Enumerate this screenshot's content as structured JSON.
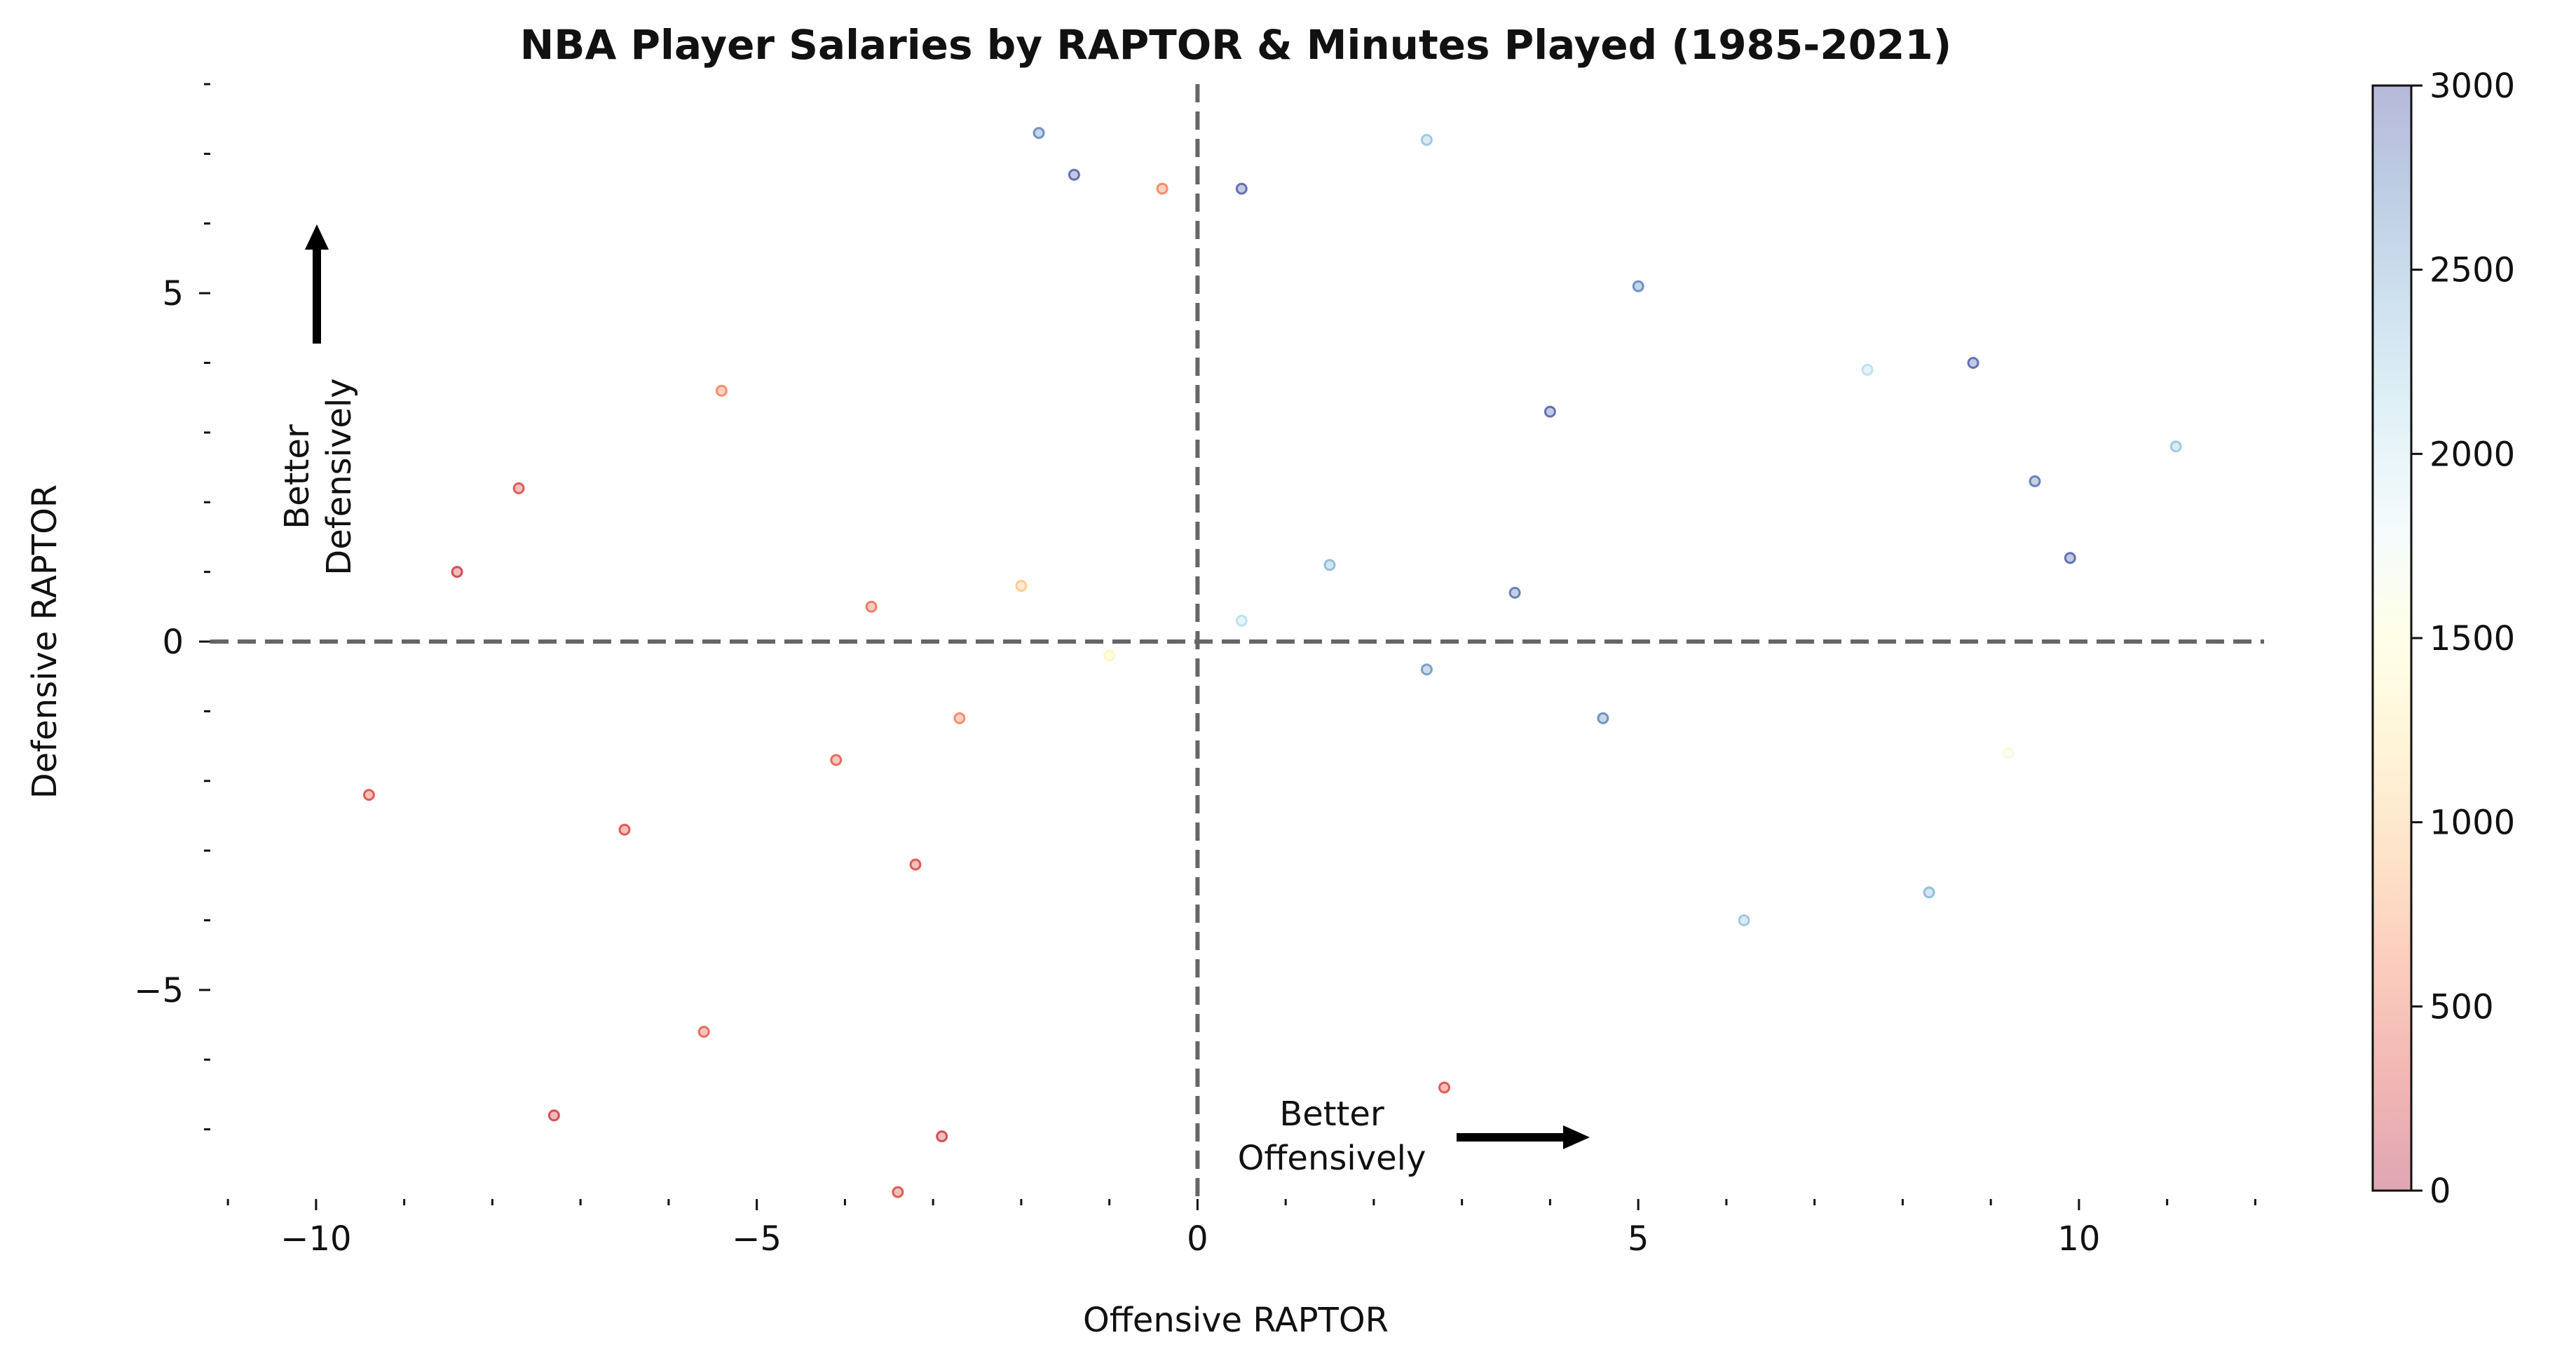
{
  "chart_data": {
    "type": "scatter",
    "title": "NBA Player Salaries by RAPTOR & Minutes Played (1985-2021)",
    "xlabel": "Offensive RAPTOR",
    "ylabel": "Defensive RAPTOR",
    "xlim": [
      -11.2,
      12.1
    ],
    "ylim": [
      -8.0,
      8.0
    ],
    "xticks": [
      -10,
      -5,
      0,
      5,
      10
    ],
    "yticks": [
      -5,
      0,
      5
    ],
    "xtick_labels": [
      "−10",
      "−5",
      "0",
      "5",
      "10"
    ],
    "ytick_labels": [
      "−5",
      "0",
      "5"
    ],
    "reference_lines": {
      "x": 0,
      "y": 0,
      "style": "dashed"
    },
    "grid": false,
    "annotations": {
      "defense": [
        "Better",
        "Defensively"
      ],
      "offense": [
        "Better",
        "Offensively"
      ]
    },
    "colorbar": {
      "label": "",
      "range": [
        0,
        3000
      ],
      "ticks": [
        0,
        500,
        1000,
        1500,
        2000,
        2500,
        3000
      ],
      "tick_labels": [
        "0",
        "500",
        "1000",
        "1500",
        "2000",
        "2500",
        "3000"
      ],
      "colormap": "RdYlBu",
      "colors": [
        "#a50026",
        "#d73027",
        "#f46d43",
        "#fdae61",
        "#fee090",
        "#ffffbf",
        "#e0f3f8",
        "#abd9e9",
        "#74add1",
        "#4575b4",
        "#313695"
      ]
    },
    "series": [
      {
        "color_by": "minutes played",
        "points": [
          [
            -9.4,
            -2.2,
            300
          ],
          [
            -8.4,
            1.0,
            200
          ],
          [
            -7.7,
            2.2,
            300
          ],
          [
            -7.3,
            -6.8,
            200
          ],
          [
            -6.5,
            -2.7,
            300
          ],
          [
            -5.6,
            -5.6,
            400
          ],
          [
            -3.4,
            -7.9,
            300
          ],
          [
            -2.9,
            -7.1,
            200
          ],
          [
            -1.8,
            7.3,
            2700
          ],
          [
            -1.4,
            6.7,
            2900
          ],
          [
            -0.4,
            6.5,
            600
          ],
          [
            0.5,
            6.5,
            2900
          ],
          [
            2.6,
            7.2,
            2300
          ],
          [
            2.8,
            -6.4,
            300
          ],
          [
            11.1,
            2.8,
            2300
          ],
          [
            9.5,
            2.3,
            2800
          ],
          [
            9.9,
            1.2,
            2900
          ],
          [
            9.2,
            -1.6,
            1600
          ],
          [
            8.8,
            4.0,
            2900
          ],
          [
            8.3,
            -3.6,
            2400
          ],
          [
            7.6,
            3.9,
            2100
          ],
          [
            6.2,
            -4.0,
            2300
          ],
          [
            -5.4,
            3.6,
            600
          ],
          [
            4.0,
            3.3,
            2900
          ],
          [
            5.0,
            5.1,
            2700
          ],
          [
            -3.2,
            -3.2,
            300
          ],
          [
            -2.7,
            -1.1,
            600
          ],
          [
            -2.0,
            0.8,
            1000
          ],
          [
            -1.0,
            -0.2,
            1400
          ],
          [
            0.5,
            0.3,
            2100
          ],
          [
            1.5,
            1.1,
            2400
          ],
          [
            2.6,
            -0.4,
            2600
          ],
          [
            3.6,
            0.7,
            2800
          ],
          [
            4.6,
            -1.1,
            2700
          ],
          [
            -4.1,
            -1.7,
            400
          ],
          [
            -3.7,
            0.5,
            500
          ]
        ]
      }
    ]
  }
}
